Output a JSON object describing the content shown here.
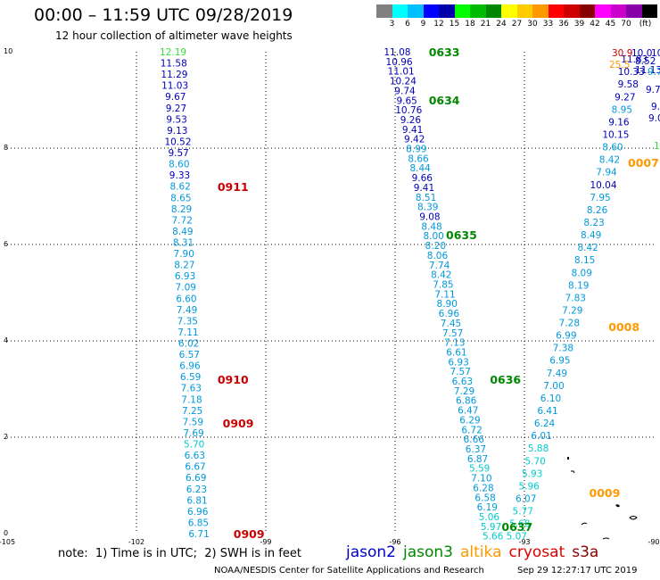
{
  "title": "00:00 – 11:59 UTC 09/28/2019",
  "subtitle": "12 hour collection of altimeter wave heights",
  "colorbar": {
    "colors": [
      "#808080",
      "#00ffff",
      "#00bfff",
      "#0000ff",
      "#0000aa",
      "#00ff00",
      "#00bb00",
      "#008800",
      "#ffff00",
      "#ffcc00",
      "#ff9900",
      "#ff0000",
      "#cc0000",
      "#880000",
      "#ff00ff",
      "#cc00cc",
      "#8800aa",
      "#000000"
    ],
    "labels": [
      "3",
      "6",
      "9",
      "12",
      "15",
      "18",
      "21",
      "24",
      "27",
      "30",
      "33",
      "36",
      "39",
      "42",
      "45",
      "70",
      "(ft)"
    ]
  },
  "axes": {
    "x_ticks": [
      "-105",
      "-102",
      "-99",
      "-96",
      "-93",
      "-90"
    ],
    "y_ticks": [
      "0",
      "2",
      "4",
      "6",
      "8",
      "10"
    ]
  },
  "footnote": "note:  1) Time is in UTC;  2) SWH is in feet",
  "legend": [
    {
      "name": "jason2",
      "color": "#0000cc"
    },
    {
      "name": "jason3",
      "color": "#008800"
    },
    {
      "name": "altika",
      "color": "#ff9900"
    },
    {
      "name": "cryosat",
      "color": "#dd0000"
    },
    {
      "name": "s3a",
      "color": "#880000"
    }
  ],
  "footer_left": "NOAA/NESDIS Center for Satellite Applications and Research",
  "footer_right": "Sep 29 12:27:17 UTC 2019",
  "time_labels": [
    {
      "text": "0633",
      "color": "#008800",
      "lon": -95.22,
      "lat": 10.0
    },
    {
      "text": "0634",
      "color": "#008800",
      "lon": -95.22,
      "lat": 9.0
    },
    {
      "text": "0635",
      "color": "#008800",
      "lon": -94.82,
      "lat": 6.2
    },
    {
      "text": "0636",
      "color": "#008800",
      "lon": -93.8,
      "lat": 3.2
    },
    {
      "text": "0637",
      "color": "#008800",
      "lon": -93.53,
      "lat": 0.15
    },
    {
      "text": "0911",
      "color": "#cc0000",
      "lon": -100.12,
      "lat": 7.2
    },
    {
      "text": "0910",
      "color": "#cc0000",
      "lon": -100.12,
      "lat": 3.2
    },
    {
      "text": "0909",
      "color": "#cc0000",
      "lon": -100.0,
      "lat": 2.3
    },
    {
      "text": "0909",
      "color": "#cc0000",
      "lon": -99.75,
      "lat": 0.0
    },
    {
      "text": "0007",
      "color": "#ff9900",
      "lon": -90.6,
      "lat": 7.7
    },
    {
      "text": "0008",
      "color": "#ff9900",
      "lon": -91.05,
      "lat": 4.3
    },
    {
      "text": "0009",
      "color": "#ff9900",
      "lon": -91.5,
      "lat": 0.85
    }
  ],
  "tracks": [
    {
      "name": "track-west",
      "start": {
        "lon": -101.15,
        "lat": 10.0
      },
      "end": {
        "lon": -100.55,
        "lat": 0.0
      },
      "values": [
        "12.19",
        "11.58",
        "11.29",
        "11.03",
        "9.67",
        "9.27",
        "9.53",
        "9.13",
        "10.52",
        "9.57",
        "8.60",
        "9.33",
        "8.62",
        "8.65",
        "8.29",
        "7.72",
        "8.49",
        "8.31",
        "7.90",
        "8.27",
        "6.93",
        "7.09",
        "6.60",
        "7.49",
        "7.35",
        "7.11",
        "6.02",
        "6.57",
        "6.96",
        "6.59",
        "7.63",
        "7.18",
        "7.25",
        "7.59",
        "7.69",
        "5.70",
        "6.63",
        "6.67",
        "6.69",
        "6.23",
        "6.81",
        "6.96",
        "6.85",
        "6.71"
      ]
    },
    {
      "name": "track-middle",
      "start": {
        "lon": -95.95,
        "lat": 10.0
      },
      "end": {
        "lon": -93.73,
        "lat": -0.05
      },
      "values": [
        "11.08",
        "10.96",
        "11.01",
        "10.24",
        "9.74",
        "9.65",
        "10.76",
        "9.26",
        "9.41",
        "9.42",
        "8.99",
        "8.66",
        "8.44",
        "9.66",
        "9.41",
        "8.51",
        "8.39",
        "9.08",
        "8.48",
        "8.00",
        "8.20",
        "8.06",
        "7.74",
        "8.42",
        "7.85",
        "7.11",
        "8.90",
        "6.96",
        "7.45",
        "7.57",
        "7.13",
        "6.61",
        "6.93",
        "7.57",
        "6.63",
        "7.29",
        "6.86",
        "6.47",
        "6.29",
        "6.72",
        "6.66",
        "6.37",
        "6.87",
        "5.59",
        "7.10",
        "6.28",
        "6.58",
        "6.19",
        "5.06",
        "5.97",
        "5.66"
      ]
    },
    {
      "name": "track-east",
      "start": {
        "lon": -90.45,
        "lat": 9.85
      },
      "end": {
        "lon": -93.18,
        "lat": -0.05
      },
      "values": [
        "11.83",
        "10.33",
        "9.58",
        "9.27",
        "8.95",
        "9.16",
        "10.15",
        "8.60",
        "8.42",
        "7.94",
        "10.04",
        "7.95",
        "8.26",
        "8.23",
        "8.49",
        "8.42",
        "8.15",
        "8.09",
        "8.19",
        "7.83",
        "7.29",
        "7.28",
        "6.99",
        "7.38",
        "6.95",
        "7.49",
        "7.00",
        "6.10",
        "6.41",
        "6.24",
        "6.01",
        "5.88",
        "5.70",
        "5.93",
        "5.96",
        "6.07",
        "5.77",
        "5.68",
        "5.07"
      ]
    }
  ],
  "top_right_values": [
    "30.9",
    "10.0",
    "10.5",
    "8.52",
    "25.5",
    "11.13",
    "9.79",
    "9.72",
    "9.38",
    "9.0",
    "14"
  ]
}
